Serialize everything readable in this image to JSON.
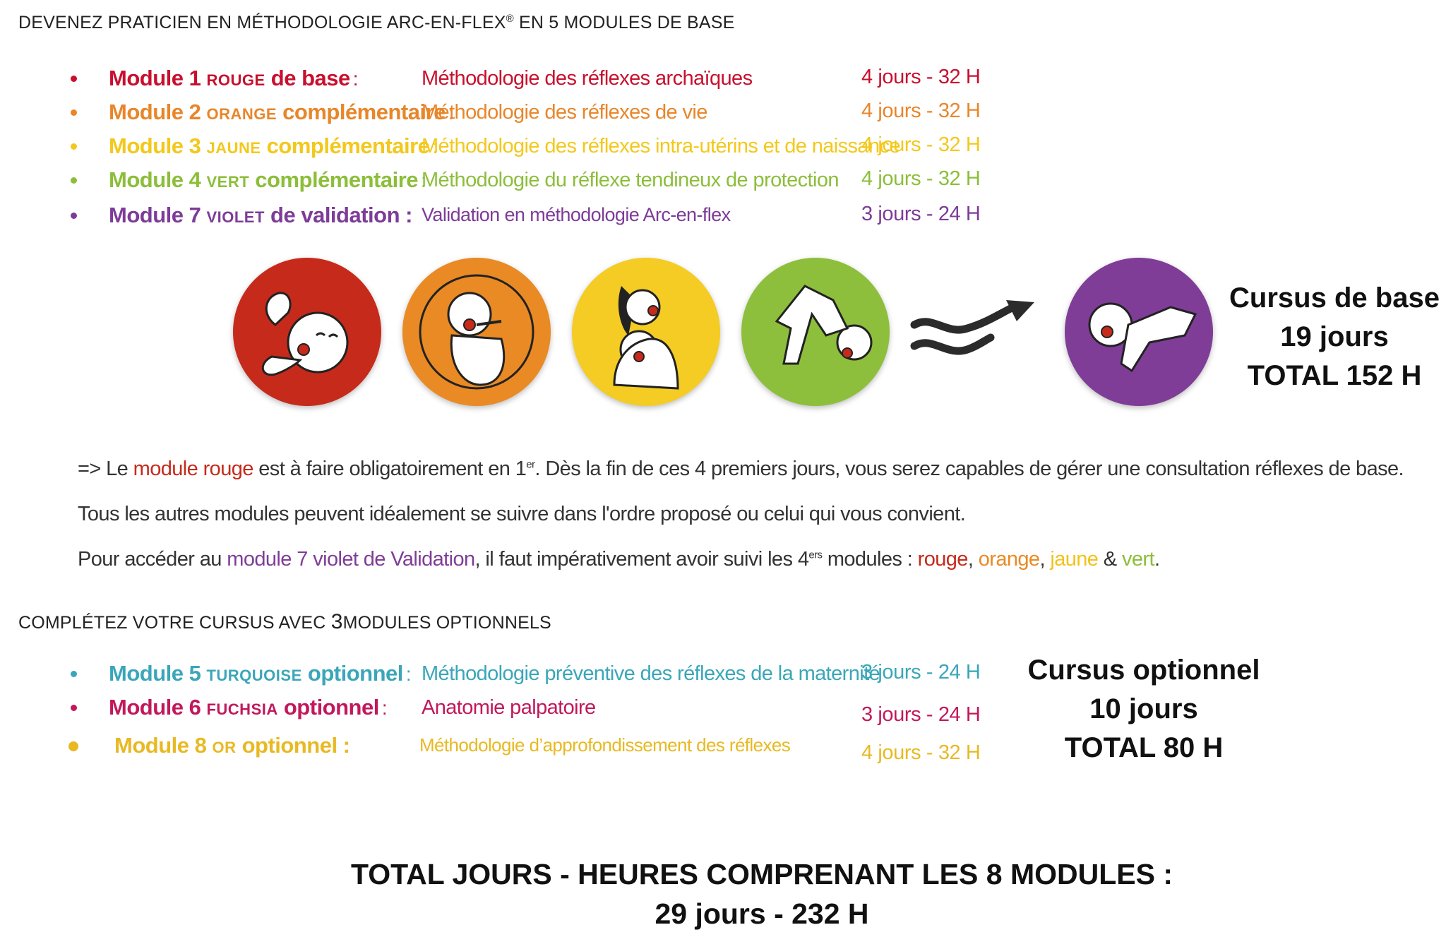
{
  "heading1": {
    "prefix": "DEVENEZ PRATICIEN EN MÉTHODOLOGIE ARC-EN-FLEX",
    "reg": "®",
    "suffix": " EN 5 MODULES DE BASE"
  },
  "base_modules": [
    {
      "num": "Module 1",
      "color_word": "rouge",
      "type": "de base",
      "colon": ":",
      "description": "Méthodologie des réflexes archaïques",
      "duration": "4 jours - 32 H",
      "color": "#c8102e"
    },
    {
      "num": "Module 2",
      "color_word": "orange",
      "type": "complémentaire",
      "colon": ":",
      "description": "Méthodologie des réflexes de vie",
      "duration": "4 jours - 32 H",
      "color": "#e8862a"
    },
    {
      "num": "Module 3",
      "color_word": "jaune",
      "type": "complémentaire",
      "colon": ":",
      "description": "Méthodologie des réflexes intra-utérins et de naissance",
      "duration": "4 jours - 32 H",
      "color": "#f3c81c"
    },
    {
      "num": "Module 4",
      "color_word": "vert",
      "type": "complémentaire",
      "colon": ":",
      "description": "Méthodologie du réflexe tendineux de protection",
      "duration": "4 jours - 32 H",
      "color": "#8cbe3a"
    },
    {
      "num": "Module 7",
      "color_word": "violet",
      "type": "de validation :",
      "colon": "",
      "description": "Validation en méthodologie Arc-en-flex",
      "duration": "3 jours - 24 H",
      "color": "#7d3c98"
    }
  ],
  "circles": [
    {
      "icon": "baby-curled-icon",
      "color": "#c62a1b"
    },
    {
      "icon": "baby-sucking-icon",
      "color": "#e98a24"
    },
    {
      "icon": "mother-baby-icon",
      "color": "#f4cc23"
    },
    {
      "icon": "baby-crawling-icon",
      "color": "#8dbf3c"
    },
    {
      "icon": "baby-reaching-icon",
      "color": "#7f3d97"
    }
  ],
  "cursus_base": {
    "line1": "Cursus de base",
    "line2": "19 jours",
    "line3": "TOTAL 152 H"
  },
  "notes": {
    "line1_prefix": "=> Le ",
    "line1_colored": "module rouge",
    "line1_mid": " est à faire obligatoirement en 1",
    "line1_sup": "er",
    "line1_suffix": ". Dès la fin de ces 4 premiers jours, vous serez capables de gérer une consultation réflexes de base.",
    "line2": "Tous les autres modules peuvent idéalement se suivre dans l'ordre proposé ou celui qui vous convient.",
    "line3_prefix": "Pour accéder au ",
    "line3_colored": "module 7 violet de Validation",
    "line3_mid": ", il faut impérativement avoir suivi les 4",
    "line3_sup": "ers",
    "line3_after": " modules : ",
    "w_rouge": "rouge",
    "w_orange": "orange",
    "w_jaune": "jaune",
    "w_amp": " & ",
    "w_vert": "vert",
    "sep": ", ",
    "end": "."
  },
  "heading2": {
    "prefix": "COMPLÉTEZ VOTRE CURSUS AVEC ",
    "num": "3",
    "suffix": "MODULES OPTIONNELS"
  },
  "optional_modules": [
    {
      "num": "Module 5",
      "color_word": "turquoise",
      "type": "optionnel",
      "colon": ":",
      "description": "Méthodologie préventive des réflexes de la maternité",
      "duration": "3 jours - 24 H",
      "color": "#3aa6b9"
    },
    {
      "num": "Module 6",
      "color_word": "fuchsia",
      "type": "optionnel",
      "colon": ":",
      "description": "Anatomie palpatoire",
      "duration": "3 jours - 24 H",
      "color": "#c2185b"
    },
    {
      "num": "Module 8",
      "color_word": "or",
      "type": "optionnel :",
      "colon": "",
      "description": "Méthodologie d’approfondissement des réflexes",
      "duration": "4 jours - 32 H",
      "color": "#e8b923"
    }
  ],
  "cursus_optionnel": {
    "line1": "Cursus optionnel",
    "line2": "10 jours",
    "line3": "TOTAL 80 H"
  },
  "total": {
    "line1": "TOTAL JOURS - HEURES COMPRENANT LES 8 MODULES :",
    "line2": "29 jours - 232 H"
  }
}
